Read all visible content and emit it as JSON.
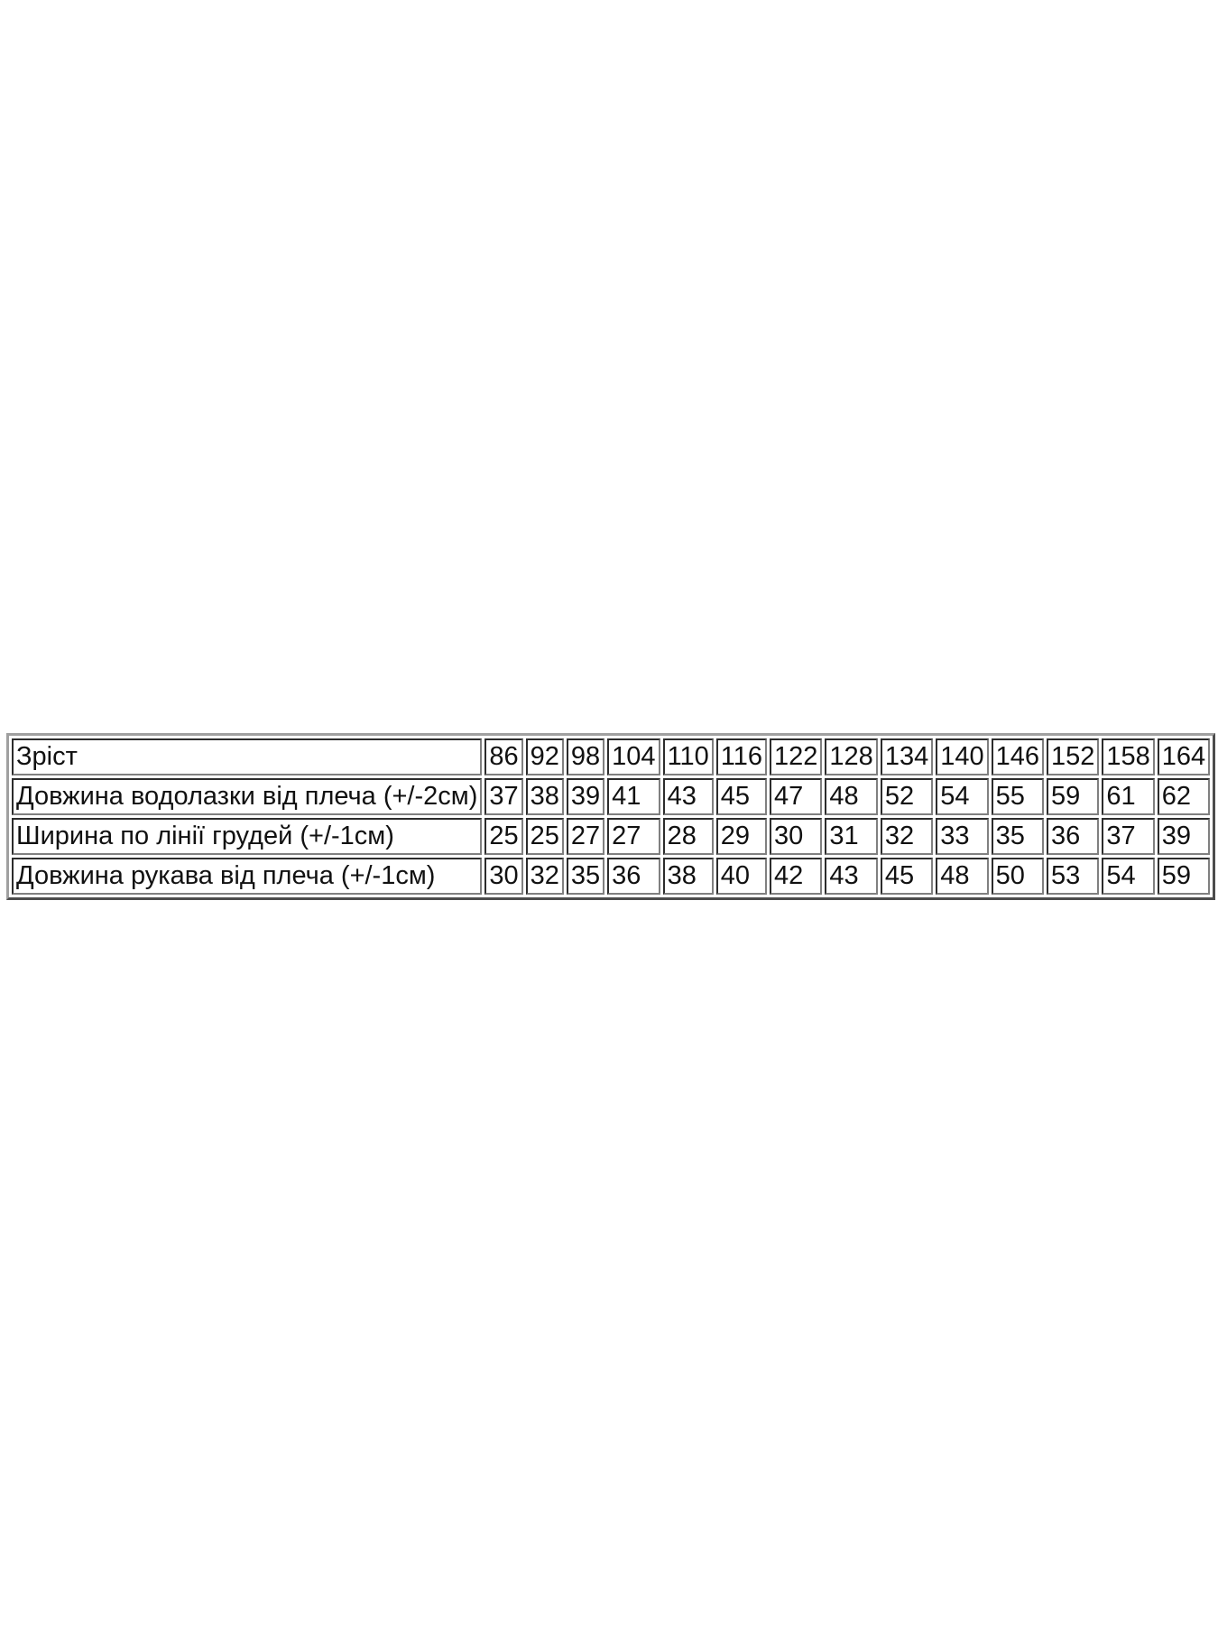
{
  "table": {
    "rows": [
      {
        "label": "Зріст",
        "values": [
          "86",
          "92",
          "98",
          "104",
          "110",
          "116",
          "122",
          "128",
          "134",
          "140",
          "146",
          "152",
          "158",
          "164"
        ]
      },
      {
        "label": "Довжина водолазки від плеча (+/-2см)",
        "values": [
          "37",
          "38",
          "39",
          "41",
          "43",
          "45",
          "47",
          "48",
          "52",
          "54",
          "55",
          "59",
          "61",
          "62"
        ]
      },
      {
        "label": "Ширина по лінії грудей (+/-1см)",
        "values": [
          "25",
          "25",
          "27",
          "27",
          "28",
          "29",
          "30",
          "31",
          "32",
          "33",
          "35",
          "36",
          "37",
          "39"
        ]
      },
      {
        "label": "Довжина рукава від плеча (+/-1см)",
        "values": [
          "30",
          "32",
          "35",
          "36",
          "38",
          "40",
          "42",
          "43",
          "45",
          "48",
          "50",
          "53",
          "54",
          "59"
        ]
      }
    ]
  }
}
